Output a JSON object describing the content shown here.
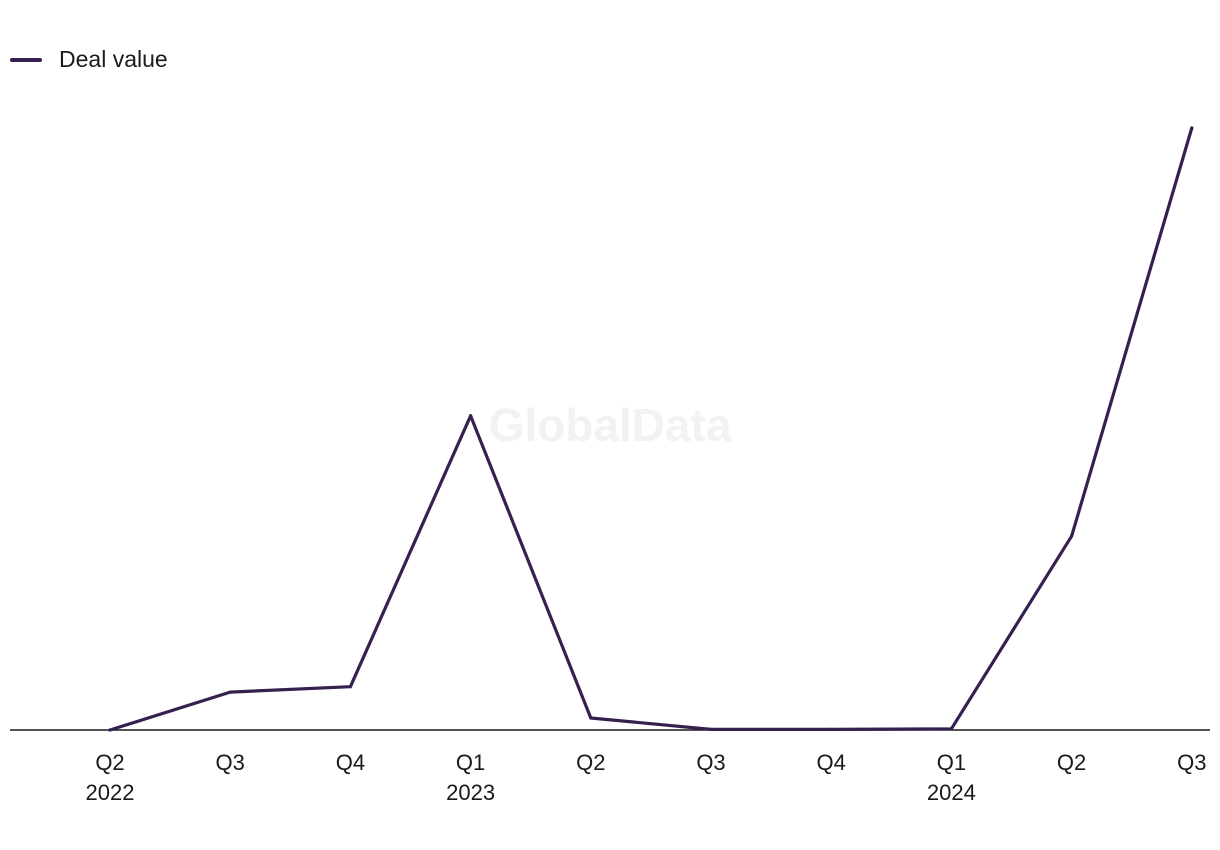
{
  "watermark": "GlobalData",
  "legend": {
    "label": "Deal value"
  },
  "colors": {
    "line": "#35204f",
    "axis": "#1a1a1a"
  },
  "chart_data": {
    "type": "line",
    "title": "",
    "xlabel": "",
    "ylabel": "",
    "grid": false,
    "legend_position": "top-left",
    "categories": [
      "Q2 2022",
      "Q3 2022",
      "Q4 2022",
      "Q1 2023",
      "Q2 2023",
      "Q3 2023",
      "Q4 2023",
      "Q1 2024",
      "Q2 2024",
      "Q3 2024"
    ],
    "tick_labels": [
      {
        "quarter": "Q2",
        "year": "2022"
      },
      {
        "quarter": "Q3",
        "year": ""
      },
      {
        "quarter": "Q4",
        "year": ""
      },
      {
        "quarter": "Q1",
        "year": "2023"
      },
      {
        "quarter": "Q2",
        "year": ""
      },
      {
        "quarter": "Q3",
        "year": ""
      },
      {
        "quarter": "Q4",
        "year": ""
      },
      {
        "quarter": "Q1",
        "year": "2024"
      },
      {
        "quarter": "Q2",
        "year": ""
      },
      {
        "quarter": "Q3",
        "year": ""
      }
    ],
    "ylim": [
      0,
      100
    ],
    "series": [
      {
        "name": "Deal value",
        "values": [
          0,
          6.3,
          7.2,
          52.2,
          2.0,
          0.1,
          0.1,
          0.2,
          32.2,
          100
        ]
      }
    ]
  }
}
